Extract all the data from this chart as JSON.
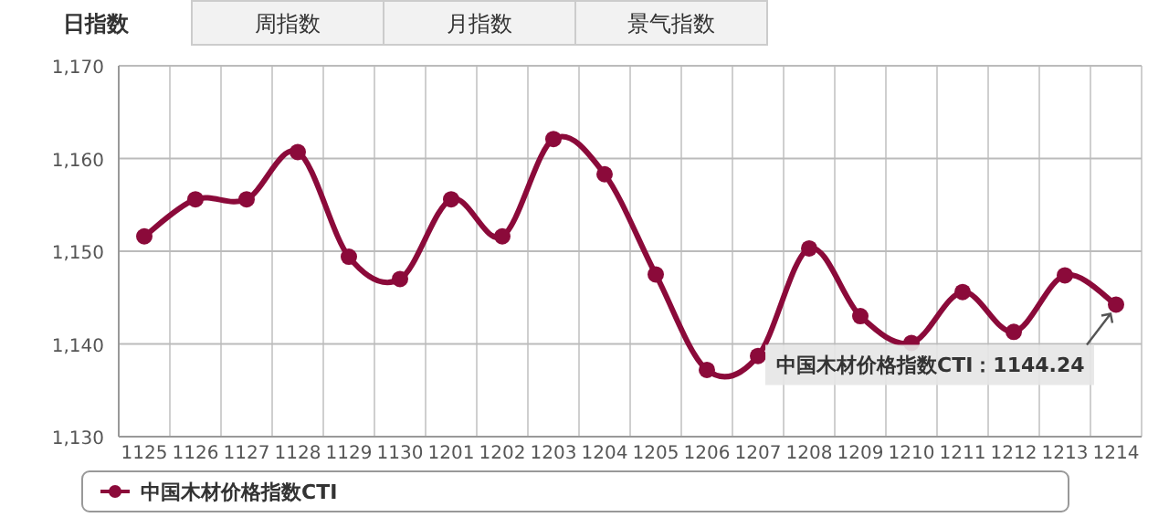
{
  "chart_data": {
    "type": "line",
    "categories": [
      "1125",
      "1126",
      "1127",
      "1128",
      "1129",
      "1130",
      "1201",
      "1202",
      "1203",
      "1204",
      "1205",
      "1206",
      "1207",
      "1208",
      "1209",
      "1210",
      "1211",
      "1212",
      "1213",
      "1214"
    ],
    "series": [
      {
        "name": "中国木材价格指数CTI",
        "color": "#8b0a3a",
        "values": [
          1151.6,
          1155.6,
          1155.6,
          1160.7,
          1149.4,
          1147.0,
          1155.6,
          1151.6,
          1162.1,
          1158.3,
          1147.5,
          1137.2,
          1138.7,
          1150.3,
          1143.0,
          1140.1,
          1145.6,
          1141.3,
          1147.4,
          1144.24
        ]
      }
    ],
    "ylim": [
      1130,
      1170
    ],
    "yticks": [
      {
        "value": 1130,
        "label": "1,130"
      },
      {
        "value": 1140,
        "label": "1,140"
      },
      {
        "value": 1150,
        "label": "1,150"
      },
      {
        "value": 1160,
        "label": "1,160"
      },
      {
        "value": 1170,
        "label": "1,170"
      }
    ],
    "grid": true,
    "marker": "circle",
    "legend": "bottom",
    "annotations": [
      "日指数",
      "周指数",
      "月指数",
      "景气指数",
      {
        "text": "中国木材价格指数CTI：1144.24",
        "x": "1214",
        "y": 1144.24
      }
    ]
  }
}
